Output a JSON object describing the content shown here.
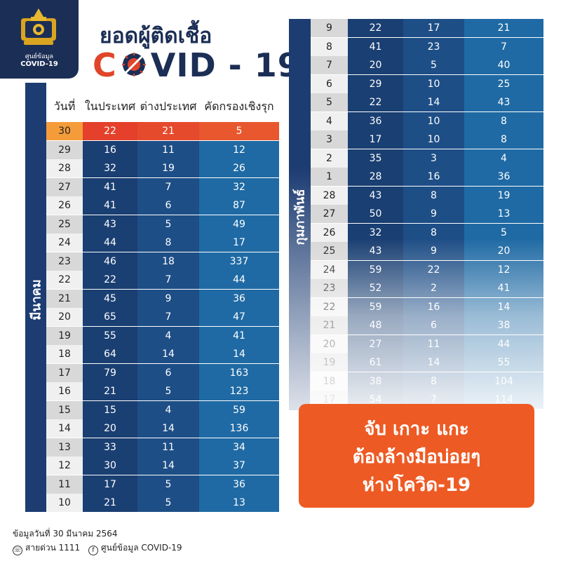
{
  "logo": {
    "line1": "ศูนย์ข้อมูล",
    "line2": "COVID-19",
    "icon": "royal-emblem-icon"
  },
  "title": {
    "line1": "ยอดผู้ติดเชื้อ",
    "line2_prefix": "C",
    "line2_suffix": "VID - 19",
    "virus_icon": "virus-stop-icon"
  },
  "chart_data": {
    "type": "table",
    "columns": [
      "วันที่",
      "ในประเทศ",
      "ต่างประเทศ",
      "คัดกรองเชิงรุก"
    ],
    "months": [
      {
        "name": "มีนาคม",
        "rows": [
          {
            "day": "30",
            "local": "22",
            "imported": "21",
            "proactive": "5"
          },
          {
            "day": "29",
            "local": "16",
            "imported": "11",
            "proactive": "12"
          },
          {
            "day": "28",
            "local": "32",
            "imported": "19",
            "proactive": "26"
          },
          {
            "day": "27",
            "local": "41",
            "imported": "7",
            "proactive": "32"
          },
          {
            "day": "26",
            "local": "41",
            "imported": "6",
            "proactive": "87"
          },
          {
            "day": "25",
            "local": "43",
            "imported": "5",
            "proactive": "49"
          },
          {
            "day": "24",
            "local": "44",
            "imported": "8",
            "proactive": "17"
          },
          {
            "day": "23",
            "local": "46",
            "imported": "18",
            "proactive": "337"
          },
          {
            "day": "22",
            "local": "22",
            "imported": "7",
            "proactive": "44"
          },
          {
            "day": "21",
            "local": "45",
            "imported": "9",
            "proactive": "36"
          },
          {
            "day": "20",
            "local": "65",
            "imported": "7",
            "proactive": "47"
          },
          {
            "day": "19",
            "local": "55",
            "imported": "4",
            "proactive": "41"
          },
          {
            "day": "18",
            "local": "64",
            "imported": "14",
            "proactive": "14"
          },
          {
            "day": "17",
            "local": "79",
            "imported": "6",
            "proactive": "163"
          },
          {
            "day": "16",
            "local": "21",
            "imported": "5",
            "proactive": "123"
          },
          {
            "day": "15",
            "local": "15",
            "imported": "4",
            "proactive": "59"
          },
          {
            "day": "14",
            "local": "20",
            "imported": "14",
            "proactive": "136"
          },
          {
            "day": "13",
            "local": "33",
            "imported": "11",
            "proactive": "34"
          },
          {
            "day": "12",
            "local": "30",
            "imported": "14",
            "proactive": "37"
          },
          {
            "day": "11",
            "local": "17",
            "imported": "5",
            "proactive": "36"
          },
          {
            "day": "10",
            "local": "21",
            "imported": "5",
            "proactive": "13"
          },
          {
            "day": "9",
            "local": "22",
            "imported": "17",
            "proactive": "21"
          },
          {
            "day": "8",
            "local": "41",
            "imported": "23",
            "proactive": "7"
          },
          {
            "day": "7",
            "local": "20",
            "imported": "5",
            "proactive": "40"
          },
          {
            "day": "6",
            "local": "29",
            "imported": "10",
            "proactive": "25"
          },
          {
            "day": "5",
            "local": "22",
            "imported": "14",
            "proactive": "43"
          },
          {
            "day": "4",
            "local": "36",
            "imported": "10",
            "proactive": "8"
          },
          {
            "day": "3",
            "local": "17",
            "imported": "10",
            "proactive": "8"
          },
          {
            "day": "2",
            "local": "35",
            "imported": "3",
            "proactive": "4"
          },
          {
            "day": "1",
            "local": "28",
            "imported": "16",
            "proactive": "36"
          }
        ]
      },
      {
        "name": "กุมภาพันธ์",
        "rows": [
          {
            "day": "28",
            "local": "43",
            "imported": "8",
            "proactive": "19"
          },
          {
            "day": "27",
            "local": "50",
            "imported": "9",
            "proactive": "13"
          },
          {
            "day": "26",
            "local": "32",
            "imported": "8",
            "proactive": "5"
          },
          {
            "day": "25",
            "local": "43",
            "imported": "9",
            "proactive": "20"
          },
          {
            "day": "24",
            "local": "59",
            "imported": "22",
            "proactive": "12"
          },
          {
            "day": "23",
            "local": "52",
            "imported": "2",
            "proactive": "41"
          },
          {
            "day": "22",
            "local": "59",
            "imported": "16",
            "proactive": "14"
          },
          {
            "day": "21",
            "local": "48",
            "imported": "6",
            "proactive": "38"
          },
          {
            "day": "20",
            "local": "27",
            "imported": "11",
            "proactive": "44"
          },
          {
            "day": "19",
            "local": "61",
            "imported": "14",
            "proactive": "55"
          },
          {
            "day": "18",
            "local": "38",
            "imported": "8",
            "proactive": "104"
          },
          {
            "day": "17",
            "local": "54",
            "imported": "7",
            "proactive": "114"
          }
        ]
      }
    ]
  },
  "colors": {
    "navy": "#1b2e55",
    "sidebar": "#1d3c72",
    "highlight_day": "#f59c3a",
    "highlight_local": "#e4402b",
    "highlight_imported": "#e64a2c",
    "highlight_proactive": "#e8572d",
    "local": "#1a3f72",
    "imported": "#1e4e86",
    "proactive": "#1f6aa4",
    "day_light": "#f0f0f0",
    "day_dark": "#d8d8d8",
    "orange": "#ee5a24"
  },
  "slogan": {
    "line1": "จับ เกาะ แกะ",
    "line2": "ต้องล้างมือบ่อยๆ",
    "line3": "ห่างโควิด-19"
  },
  "footer": {
    "date_text": "ข้อมูลวันที่ 30 มีนาคม 2564",
    "hotline": "สายด่วน 1111",
    "facebook": "ศูนย์ข้อมูล COVID-19",
    "phone_icon": "phone-icon",
    "facebook_icon": "facebook-icon"
  }
}
